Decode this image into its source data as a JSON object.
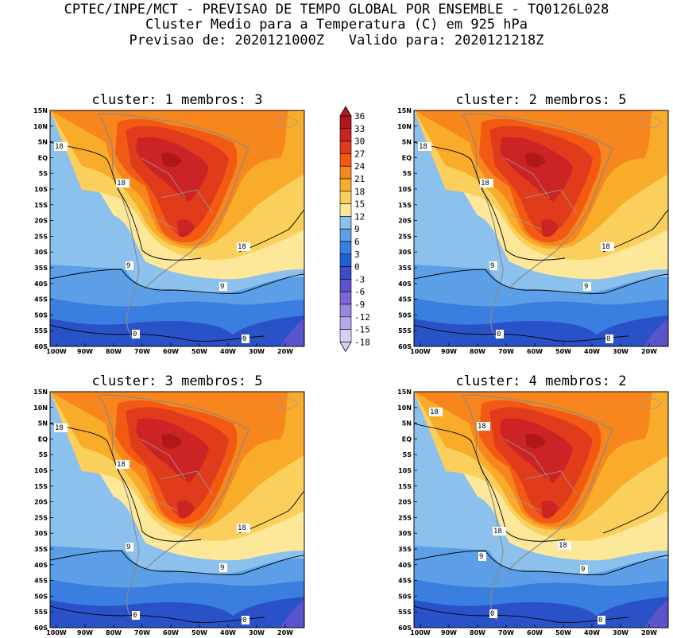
{
  "header": {
    "line1": "CPTEC/INPE/MCT - PREVISAO DE TEMPO GLOBAL POR ENSEMBLE - TQ0126L028",
    "line2": "Cluster Medio para a Temperatura (C) em 925 hPa",
    "line3": "Previsao de: 2020121000Z   Valido para: 2020121218Z"
  },
  "panels": [
    {
      "title": "cluster: 1  membros: 3",
      "contour_labels": [
        "18",
        "18",
        "18",
        "9",
        "9",
        "0",
        "0"
      ]
    },
    {
      "title": "cluster: 2  membros: 5",
      "contour_labels": [
        "18",
        "18",
        "18",
        "9",
        "9",
        "0",
        "0"
      ]
    },
    {
      "title": "cluster: 3  membros: 5",
      "contour_labels": [
        "18",
        "18",
        "18",
        "9",
        "9",
        "0",
        "0"
      ]
    },
    {
      "title": "cluster: 4  membros: 2",
      "contour_labels": [
        "18",
        "18",
        "18",
        "18",
        "9",
        "9",
        "0",
        "0"
      ]
    }
  ],
  "lat_labels": [
    "15N",
    "10N",
    "5N",
    "EQ",
    "5S",
    "10S",
    "15S",
    "20S",
    "25S",
    "30S",
    "35S",
    "40S",
    "45S",
    "50S",
    "55S",
    "60S"
  ],
  "lon_labels": [
    "100W",
    "90W",
    "80W",
    "70W",
    "60W",
    "50W",
    "40W",
    "30W",
    "20W"
  ],
  "colorbar": {
    "labels": [
      "36",
      "33",
      "30",
      "27",
      "24",
      "21",
      "18",
      "15",
      "12",
      "9",
      "6",
      "3",
      "0",
      "-3",
      "-6",
      "-9",
      "-12",
      "-15",
      "-18"
    ],
    "colors": [
      "#b01818",
      "#cc2424",
      "#e03c1c",
      "#f25a14",
      "#f7861c",
      "#f9ab2a",
      "#fbcf5c",
      "#fde89a",
      "#8cc1ee",
      "#5c9fe6",
      "#3a7ee0",
      "#1f5fd6",
      "#3a4ec6",
      "#5a54cc",
      "#7a68d4",
      "#9a86de",
      "#b8a8ea",
      "#d8d0f4"
    ]
  }
}
